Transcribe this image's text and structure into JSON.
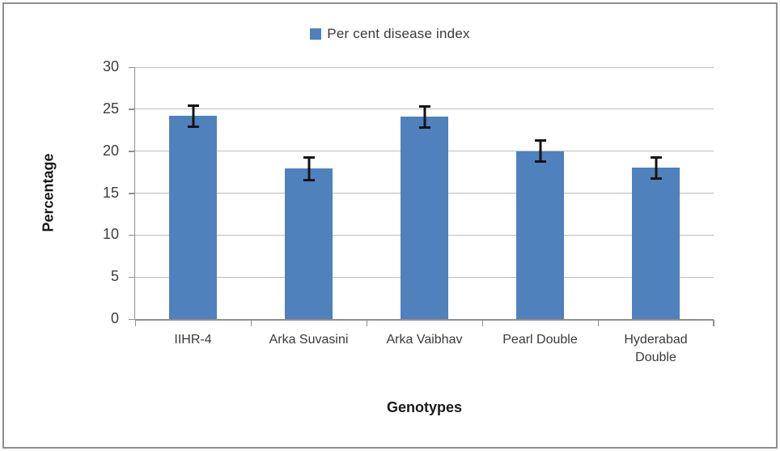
{
  "figure": {
    "legend": {
      "label": "Per cent disease index",
      "marker_color": "#4f81bd"
    }
  },
  "chart_data": {
    "type": "bar",
    "title": "",
    "categories": [
      "IIHR-4",
      "Arka Suvasini",
      "Arka Vaibhav",
      "Pearl Double",
      "Hyderabad Double"
    ],
    "series": [
      {
        "name": "Per cent disease index",
        "values": [
          24.2,
          17.9,
          24.1,
          20.0,
          18.0
        ],
        "error_bars": [
          1.4,
          1.5,
          1.4,
          1.4,
          1.4
        ]
      }
    ],
    "xlabel": "Genotypes",
    "ylabel": "Percentage",
    "ylim": [
      0,
      30
    ],
    "yticks": [
      0,
      5,
      10,
      15,
      20,
      25,
      30
    ],
    "grid": true,
    "legend_position": "top-center",
    "bar_color": "#4f81bd",
    "error_color": "#141414",
    "gridline_color": "#bdbdbd",
    "axis_color": "#8f8f8f"
  }
}
